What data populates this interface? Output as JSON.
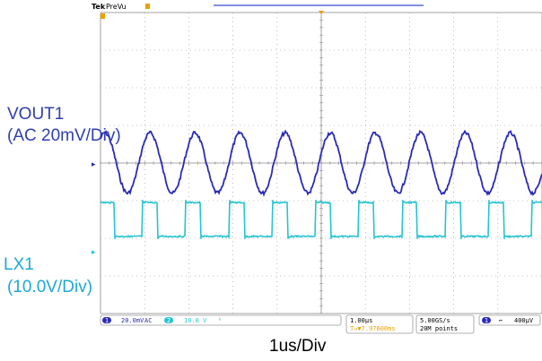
{
  "header": {
    "brand": "Tek",
    "mode": "PreVu"
  },
  "labels": {
    "vout_name": "VOUT1",
    "vout_scale": "(AC 20mV/Div)",
    "lx_name": "LX1",
    "lx_scale": "(10.0V/Div)",
    "time_scale": "1us/Div"
  },
  "status_bar": {
    "ch1_number": "1",
    "ch1_scale": "20.0mV",
    "ch1_coupling": "AC",
    "ch2_number": "2",
    "ch2_scale": "10.0 V",
    "horizontal_scale": "1.00µs",
    "trigger_position": "T→▼7.97600ms",
    "sample_rate": "5.00GS/s",
    "record_length": "20M points",
    "trigger_source": "1",
    "trigger_level": "400µV"
  },
  "colors": {
    "vout": "#2a2ab8",
    "lx": "#25c4d0",
    "label_vout": "#2f3fb0",
    "label_lx": "#1fa7d6",
    "grid": "#8c8c8c",
    "trigger_marker": "#e8a000",
    "record_bar": "#5a6ad8"
  },
  "chart_data": {
    "type": "line",
    "xlabel": "1us/Div",
    "divisions": {
      "x": 10,
      "y": 8
    },
    "series": [
      {
        "name": "VOUT1",
        "kind": "ripple",
        "cycles_visible": 9.8,
        "phase": 0.15,
        "amplitude_div": 0.8,
        "offset_div": 4.0
      },
      {
        "name": "LX1",
        "kind": "pulse",
        "period_div": 0.98,
        "duty": 0.35,
        "phase_div": 0.95,
        "high_div": 0.9,
        "low_div": 0.0,
        "offset_div": 2.05
      }
    ]
  }
}
